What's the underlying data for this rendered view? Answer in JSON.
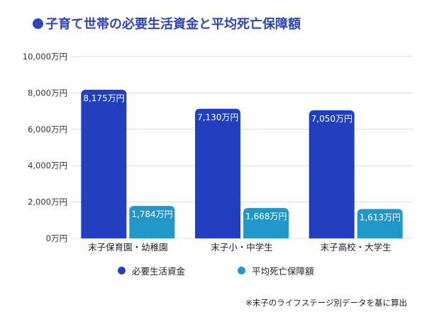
{
  "title": "子育て世帯の必要生活資金と平均死亡保障額",
  "note": "※末子のライフステージ別データを基に算出",
  "colors": {
    "title": "#2d45b8",
    "living": "#213fbf",
    "death": "#2197c7",
    "grid": "#d9d9d9"
  },
  "chart_data": {
    "type": "bar",
    "categories": [
      "末子保育園・幼稚園",
      "末子小・中学生",
      "末子高校・大学生"
    ],
    "series": [
      {
        "name": "必要生活資金",
        "values": [
          8175,
          7130,
          7050
        ],
        "labels": [
          "8,175万円",
          "7,130万円",
          "7,050万円"
        ],
        "color": "#213fbf"
      },
      {
        "name": "平均死亡保障額",
        "values": [
          1784,
          1668,
          1613
        ],
        "labels": [
          "1,784万円",
          "1,668万円",
          "1,613万円"
        ],
        "color": "#2197c7"
      }
    ],
    "ylim": [
      0,
      10000
    ],
    "yticks": [
      0,
      2000,
      4000,
      6000,
      8000,
      10000
    ],
    "ytick_labels": [
      "0万円",
      "2,000万円",
      "4,000万円",
      "6,000万円",
      "8,000万円",
      "10,000万円"
    ],
    "grid": true,
    "legend": "bottom"
  }
}
